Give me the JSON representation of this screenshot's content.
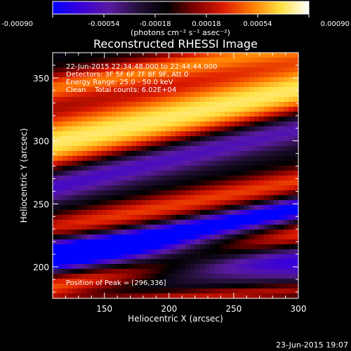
{
  "colorbar": {
    "tick_labels": [
      "-0.00090",
      "-0.00054",
      "-0.00018",
      "0.00018",
      "0.00054",
      "0.00090"
    ],
    "tick_values": [
      -0.0009,
      -0.00054,
      -0.00018,
      0.00018,
      0.00054,
      0.0009
    ],
    "range": [
      -0.0009,
      0.0009
    ],
    "units_label": "(photons cm⁻² s⁻¹ asec⁻²)",
    "colors": [
      "#0000ff",
      "#3a00d8",
      "#5a1aa0",
      "#24103a",
      "#000000",
      "#800000",
      "#dd1b00",
      "#ff7a00",
      "#ffe040",
      "#ffffff"
    ]
  },
  "footer": {
    "timestamp": "23-Jun-2015 19:07"
  },
  "annotations": {
    "time_range": "22-Jun-2015 22:34:48.000 to 22:44:44.000",
    "detectors": "Detectors: 3F 5F 6F 7F 8F 9F, Att 0",
    "energy_range": "Energy Range: 25.0 - 50.0 keV",
    "clean_counts": "Clean    Total counts: 6.02E+04",
    "peak_position": "Position of Peak = [296,336]"
  },
  "chart_data": {
    "type": "heatmap",
    "title": "Reconstructed RHESSI Image",
    "xlabel": "Heliocentric X (arcsec)",
    "ylabel": "Heliocentric Y (arcsec)",
    "xlim": [
      110,
      300
    ],
    "ylim": [
      175,
      370
    ],
    "x_ticks": [
      150,
      200,
      250,
      300
    ],
    "y_ticks": [
      200,
      250,
      300,
      350
    ],
    "x_tick_labels": [
      "150",
      "200",
      "250",
      "300"
    ],
    "y_tick_labels": [
      "200",
      "250",
      "300",
      "350"
    ],
    "peak": [
      296,
      336
    ],
    "bands": [
      {
        "name": "main bright ridge",
        "y_at_x_min": 298,
        "y_at_x_max": 340,
        "width": 24,
        "value": 0.0009
      },
      {
        "name": "upper ridge",
        "y_at_x_min": 342,
        "y_at_x_max": 376,
        "width": 12,
        "value": 0.0006
      },
      {
        "name": "middle ridge",
        "y_at_x_min": 230,
        "y_at_x_max": 268,
        "width": 11,
        "value": 0.00052
      },
      {
        "name": "lower ridge",
        "y_at_x_min": 185,
        "y_at_x_max": 224,
        "width": 11,
        "value": 0.0006
      },
      {
        "name": "bottom ridge",
        "y_at_x_min": 168,
        "y_at_x_max": 182,
        "width": 6,
        "value": 0.0004
      },
      {
        "name": "negative trough 1",
        "y_at_x_min": 265,
        "y_at_x_max": 312,
        "width": 14,
        "value": -0.0006
      },
      {
        "name": "negative trough 2",
        "y_at_x_min": 208,
        "y_at_x_max": 246,
        "width": 9,
        "value": -0.0009
      },
      {
        "name": "negative trough 3",
        "y_at_x_min": 210,
        "y_at_x_max": 205,
        "width": 16,
        "value": -0.0006
      }
    ]
  }
}
